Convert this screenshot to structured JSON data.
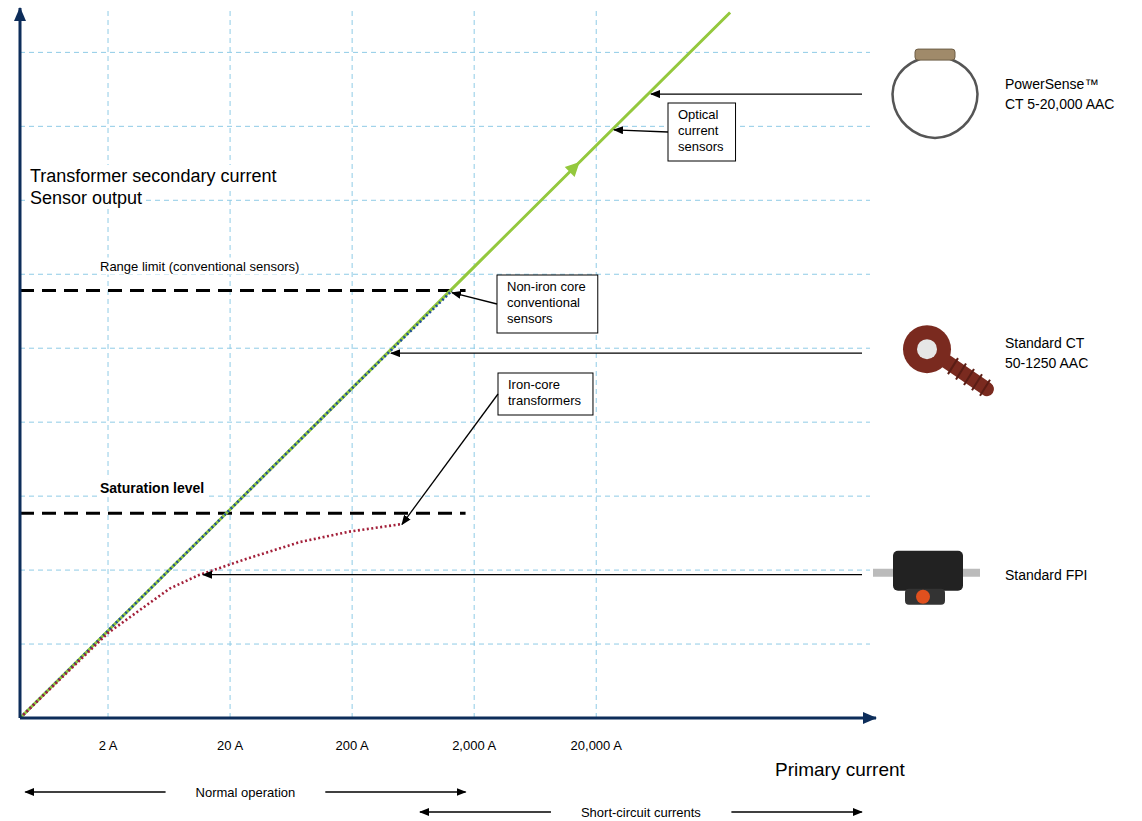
{
  "chart_data": {
    "type": "line",
    "xlabel": "Primary current",
    "ylabel": [
      "Transformer secondary current",
      "Sensor output"
    ],
    "log": "x",
    "grid": true,
    "tick_labels": "x",
    "xlim": [
      0.38,
      3500000
    ],
    "ylim": [
      0,
      9.6
    ],
    "xticks": [
      {
        "value": 2,
        "label": "2 A"
      },
      {
        "value": 20,
        "label": "20 A"
      },
      {
        "value": 200,
        "label": "200 A"
      },
      {
        "value": 2000,
        "label": "2,000 A"
      },
      {
        "value": 20000,
        "label": "20,000 A"
      }
    ],
    "yticks": [
      0,
      1,
      2,
      3,
      4,
      5,
      6,
      7,
      8,
      9
    ],
    "series": [
      {
        "name": "Optical current sensors",
        "color": "#94c83d",
        "line_style": "solid",
        "marker": "arrow",
        "device": [
          "PowerSense™",
          "CT 5-20,000 AAC"
        ],
        "x": [
          0.38,
          2,
          20,
          200,
          2000,
          20000,
          250000
        ],
        "values": [
          0,
          1.18,
          2.82,
          4.46,
          6.1,
          7.74,
          9.54
        ]
      },
      {
        "name": "Non-iron core conventional sensors",
        "color": "#1f4e9a",
        "line_style": "dotted",
        "device": [
          "Standard CT",
          "50-1250 AAC"
        ],
        "x": [
          0.38,
          2,
          20,
          200,
          1320
        ],
        "values": [
          0,
          1.18,
          2.82,
          4.46,
          5.78
        ]
      },
      {
        "name": "Iron-core transformers",
        "color": "#a3203a",
        "line_style": "dotted",
        "device": [
          "Standard FPI"
        ],
        "x": [
          0.38,
          2,
          6.4,
          11,
          27,
          75,
          190,
          500
        ],
        "values": [
          0,
          1.15,
          1.75,
          1.93,
          2.15,
          2.38,
          2.52,
          2.62
        ]
      }
    ],
    "annotations": [
      {
        "text": "Range limit (conventional sensors)",
        "y": 5.78,
        "x": [
          0.38,
          1700
        ]
      },
      {
        "text": "Saturation level",
        "y": 2.77,
        "x": [
          0.38,
          1700
        ]
      }
    ],
    "ranges": [
      {
        "text": "Normal operation",
        "x": [
          0.42,
          1700
        ]
      },
      {
        "text": "Short-circuit currents",
        "x": [
          720,
          3000000
        ]
      }
    ]
  }
}
